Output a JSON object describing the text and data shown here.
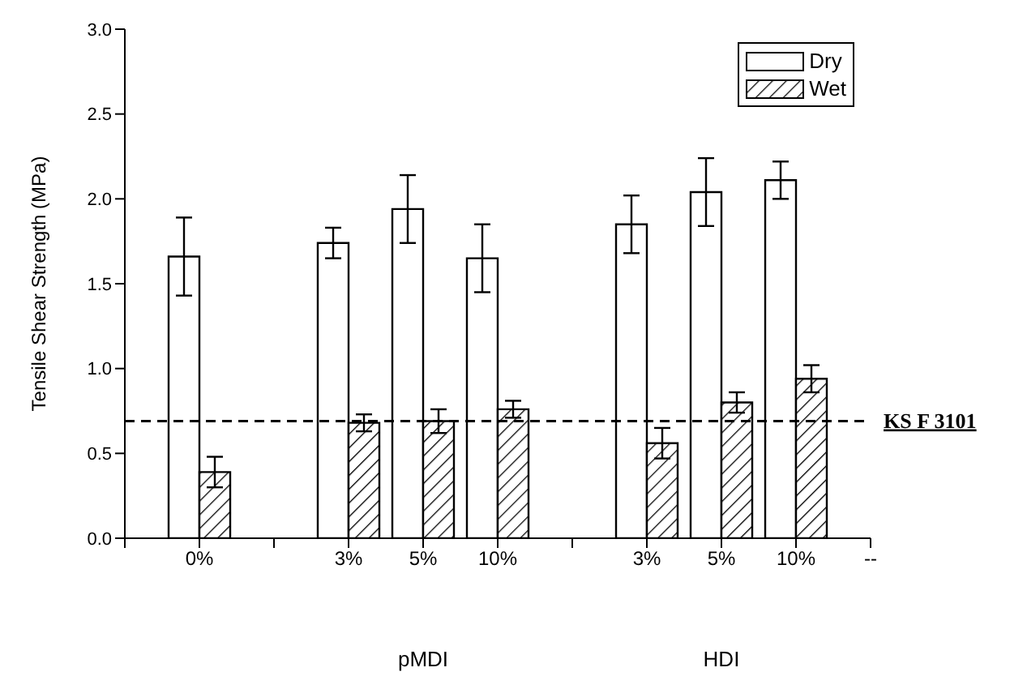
{
  "chart_data": {
    "type": "bar",
    "ylabel": "Tensile Shear Strength (MPa)",
    "categories": [
      null,
      "0%",
      null,
      "3%",
      "5%",
      "10%",
      null,
      "3%",
      "5%",
      "10%",
      "--"
    ],
    "ylim": [
      0,
      3
    ],
    "yticks": [
      {
        "value": 0,
        "label": "0.0"
      },
      {
        "value": 0.5,
        "label": "0.5"
      },
      {
        "value": 1,
        "label": "1.0"
      },
      {
        "value": 1.5,
        "label": "1.5"
      },
      {
        "value": 2,
        "label": "2.0"
      },
      {
        "value": 2.5,
        "label": "2.5"
      },
      {
        "value": 3,
        "label": "3.0"
      }
    ],
    "series": [
      {
        "name": "Dry",
        "color": "#ffffff",
        "values": [
          null,
          1.66,
          null,
          1.74,
          1.94,
          1.65,
          null,
          1.85,
          2.04,
          2.11,
          null
        ],
        "errors": [
          null,
          0.23,
          null,
          0.09,
          0.2,
          0.2,
          null,
          0.17,
          0.2,
          0.11,
          null
        ]
      },
      {
        "name": "Wet",
        "color": "#000000",
        "values": [
          null,
          0.39,
          null,
          0.68,
          0.69,
          0.76,
          null,
          0.56,
          0.8,
          0.94,
          null
        ],
        "errors": [
          null,
          0.09,
          null,
          0.05,
          0.07,
          0.05,
          null,
          0.09,
          0.06,
          0.08,
          null
        ]
      }
    ],
    "ref_lines": [
      {
        "axis": "y",
        "value": 0.69,
        "label": "KS F 3101",
        "line_style": "dashed"
      }
    ],
    "annotations": [
      "pMDI",
      "HDI"
    ],
    "legend": "top right",
    "grid": false
  }
}
